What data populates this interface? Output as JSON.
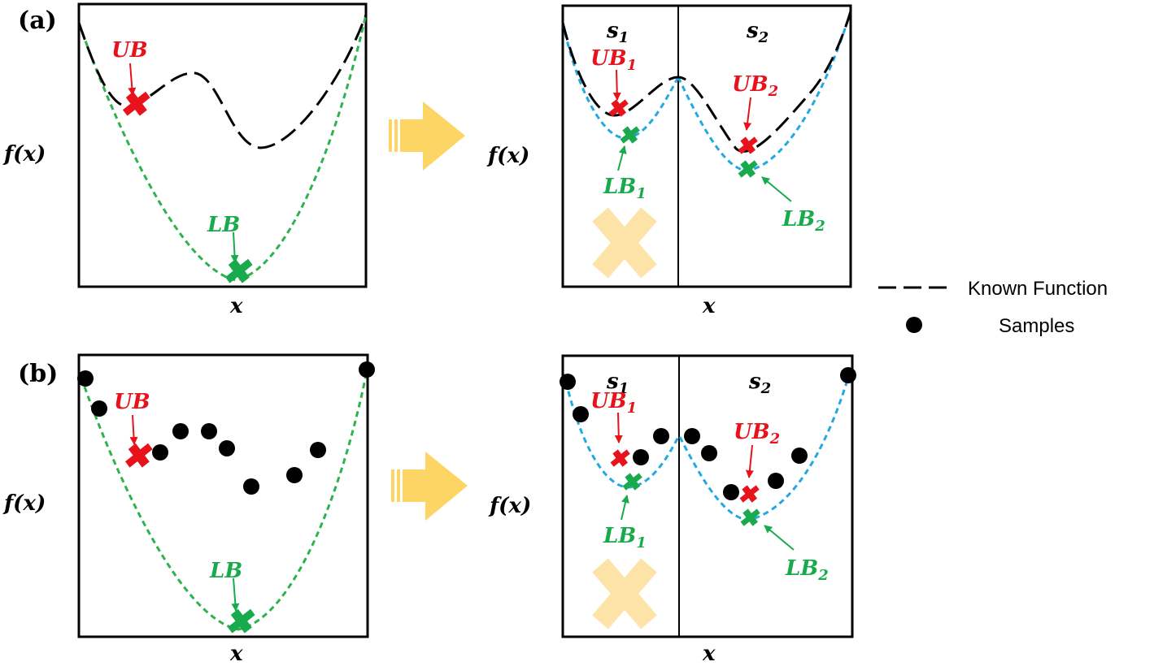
{
  "colors": {
    "upper_bound": "#e8121b",
    "lower_bound": "#1aaa4e",
    "lower_bound_curve": "#2eb24e",
    "sub_bound_curve": "#23a9e1",
    "known_function": "#000000",
    "arrow": "#fcd564",
    "pruned": "#fde3a7"
  },
  "panel_a": {
    "label": "(a)",
    "left": {
      "y_label": "f(x)",
      "x_label": "x",
      "ub": "UB",
      "lb": "LB"
    },
    "right": {
      "y_label": "f(x)",
      "x_label": "x",
      "s1": "s",
      "s1_sub": "1",
      "s2": "s",
      "s2_sub": "2",
      "ub1": "UB",
      "ub1_sub": "1",
      "ub2": "UB",
      "ub2_sub": "2",
      "lb1": "LB",
      "lb1_sub": "1",
      "lb2": "LB",
      "lb2_sub": "2"
    }
  },
  "panel_b": {
    "label": "(b)",
    "left": {
      "y_label": "f(x)",
      "x_label": "x",
      "ub": "UB",
      "lb": "LB"
    },
    "right": {
      "y_label": "f(x)",
      "x_label": "x",
      "s1": "s",
      "s1_sub": "1",
      "s2": "s",
      "s2_sub": "2",
      "ub1": "UB",
      "ub1_sub": "1",
      "ub2": "UB",
      "ub2_sub": "2",
      "lb1": "LB",
      "lb1_sub": "1",
      "lb2": "LB",
      "lb2_sub": "2"
    }
  },
  "legend": {
    "known_function": "Known Function",
    "samples": "Samples"
  }
}
